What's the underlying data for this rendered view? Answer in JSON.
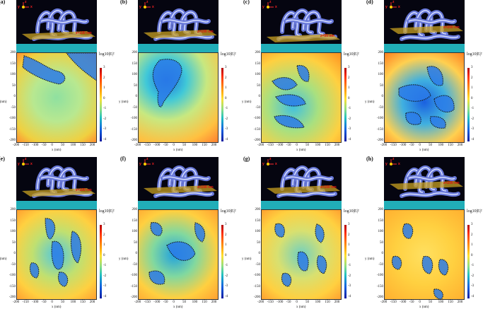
{
  "panels": [
    {
      "label": "(a)",
      "tag": "z=100 nm",
      "tag_color": "#e01010"
    },
    {
      "label": "(b)",
      "tag": "z=100 nm",
      "tag_color": "#e01010"
    },
    {
      "label": "(c)",
      "tag": "z=50 nm",
      "tag_color": "#e01010"
    },
    {
      "label": "(d)",
      "tag": "z=200 nm",
      "tag_color": "#e01010"
    },
    {
      "label": "(e)",
      "tag": "z=100 nm",
      "tag_color": "#e01010"
    },
    {
      "label": "(f)",
      "tag": "z=100 nm",
      "tag_color": "#e01010"
    },
    {
      "label": "(g)",
      "tag": "z=100 nm",
      "tag_color": "#e01010"
    },
    {
      "label": "(h)",
      "tag": "z=200 nm",
      "tag_color": "#e01010"
    }
  ],
  "axes": {
    "x_label": "x (nm)",
    "y_label": "y (nm)",
    "x_ticks": [
      "-200",
      "-150",
      "-100",
      "-50",
      "0",
      "50",
      "100",
      "150",
      "200"
    ],
    "y_ticks": [
      "200",
      "150",
      "100",
      "50",
      "0",
      "-50",
      "-100",
      "-150",
      "-200"
    ],
    "inset_axes": {
      "z": "z",
      "y": "y",
      "x": "x"
    }
  },
  "colorbar": {
    "title": "log10|E|²",
    "ticks": [
      "3",
      "2",
      "1",
      "0",
      "-1",
      "-2",
      "-3",
      "-4"
    ],
    "colors": [
      "#b00000",
      "#ff3000",
      "#ff9000",
      "#ffe030",
      "#8fe080",
      "#20c0c0",
      "#1060e0",
      "#0a1aa0"
    ]
  }
}
